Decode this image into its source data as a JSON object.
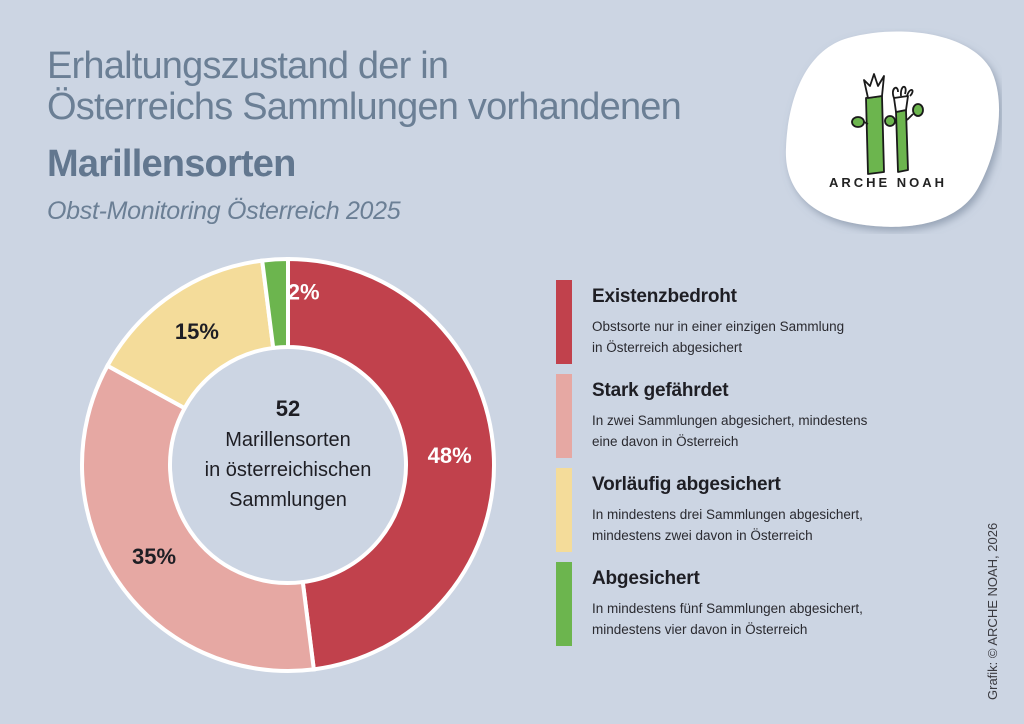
{
  "header": {
    "title_line1": "Erhaltungszustand der in",
    "title_line2": "Österreichs Sammlungen vorhandenen",
    "title_bold": "Marillensorten",
    "subtitle": "Obst-Monitoring Österreich 2025"
  },
  "logo": {
    "text": "ARCHE NOAH",
    "icon": "plant-stalks-icon"
  },
  "chart_data": {
    "type": "pie",
    "variant": "donut",
    "title": "Erhaltungszustand der in Österreichs Sammlungen vorhandenen Marillensorten",
    "center_label": {
      "number": "52",
      "line1": "Marillensorten",
      "line2": "in österreichischen",
      "line3": "Sammlungen"
    },
    "start": "top (12 o'clock), clockwise",
    "slices": [
      {
        "name": "Existenzbedroht",
        "value": 48,
        "label": "48%",
        "color": "#c1414c",
        "label_color": "#ffffff"
      },
      {
        "name": "Stark gefährdet",
        "value": 35,
        "label": "35%",
        "color": "#e6a8a3",
        "label_color": "#1e1e24"
      },
      {
        "name": "Vorläufig abgesichert",
        "value": 15,
        "label": "15%",
        "color": "#f4dc9a",
        "label_color": "#1e1e24"
      },
      {
        "name": "Abgesichert",
        "value": 2,
        "label": "2%",
        "color": "#6cb54e",
        "label_color": "#ffffff"
      }
    ],
    "legend_position": "right"
  },
  "legend": {
    "items": [
      {
        "title": "Existenzbedroht",
        "desc1": "Obstsorte nur in einer einzigen Sammlung",
        "desc2": "in Österreich abgesichert",
        "color": "#c1414c"
      },
      {
        "title": "Stark gefährdet",
        "desc1": "In zwei Sammlungen abgesichert, mindestens",
        "desc2": "eine davon in Österreich",
        "color": "#e6a8a3"
      },
      {
        "title": "Vorläufig abgesichert",
        "desc1": "In mindestens drei Sammlungen abgesichert,",
        "desc2": "mindestens zwei davon in Österreich",
        "color": "#f4dc9a"
      },
      {
        "title": "Abgesichert",
        "desc1": "In mindestens fünf Sammlungen abgesichert,",
        "desc2": "mindestens vier davon in Österreich",
        "color": "#6cb54e"
      }
    ]
  },
  "credit": "Grafik: © ARCHE NOAH, 2026"
}
